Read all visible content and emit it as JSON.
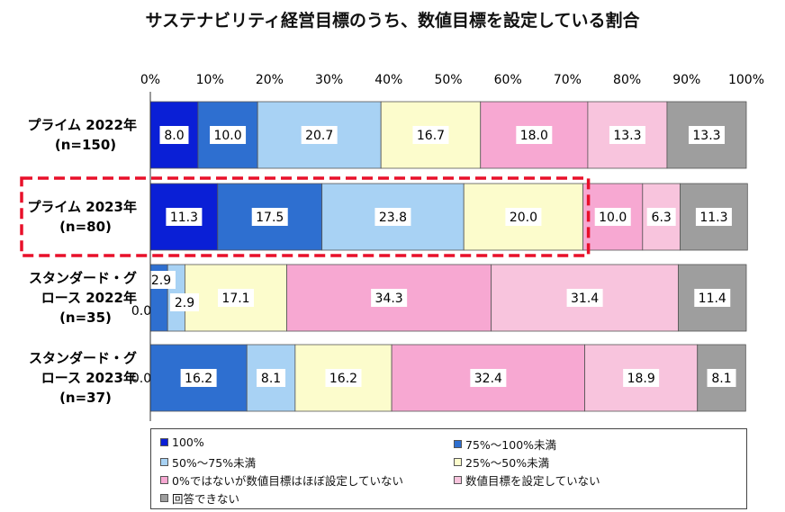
{
  "title": "サステナビリティ経営目標のうち、数値目標を設定している割合",
  "chart_data": {
    "type": "bar",
    "orientation": "horizontal",
    "stacked": true,
    "xlim": [
      0,
      100
    ],
    "x_ticks": [
      "0%",
      "10%",
      "20%",
      "30%",
      "40%",
      "50%",
      "60%",
      "70%",
      "80%",
      "90%",
      "100%"
    ],
    "grid": false,
    "legend_position": "bottom",
    "categories": [
      [
        "プライム 2022年",
        "(n=150)"
      ],
      [
        "プライム 2023年",
        "(n=80)"
      ],
      [
        "スタンダード・グ",
        "ロース 2022年",
        "(n=35)"
      ],
      [
        "スタンダード・グ",
        "ロース 2023年",
        "(n=37)"
      ]
    ],
    "series": [
      {
        "name": "100%",
        "color": "#0a1fd6",
        "values": [
          8.0,
          11.3,
          0.0,
          0.0
        ]
      },
      {
        "name": "75%～100%未満",
        "color": "#2e6fd0",
        "values": [
          10.0,
          17.5,
          2.9,
          16.2
        ]
      },
      {
        "name": "50%～75%未満",
        "color": "#a8d2f4",
        "values": [
          20.7,
          23.8,
          2.9,
          8.1
        ]
      },
      {
        "name": "25%～50%未満",
        "color": "#fcfccc",
        "values": [
          16.7,
          20.0,
          17.1,
          16.2
        ]
      },
      {
        "name": "0%ではないが数値目標はほぼ設定していない",
        "color": "#f7a8d2",
        "values": [
          18.0,
          10.0,
          34.3,
          32.4
        ]
      },
      {
        "name": "数値目標を設定していない",
        "color": "#f8c4dd",
        "values": [
          13.3,
          6.3,
          31.4,
          18.9
        ]
      },
      {
        "name": "回答できない",
        "color": "#9e9e9e",
        "values": [
          13.3,
          11.3,
          11.4,
          8.1
        ]
      }
    ],
    "value_labels": [
      [
        "8.0",
        "10.0",
        "20.7",
        "16.7",
        "18.0",
        "13.3",
        "13.3"
      ],
      [
        "11.3",
        "17.5",
        "23.8",
        "20.0",
        "10.0",
        "6.3",
        "11.3"
      ],
      [
        "0.0",
        "2.9",
        "2.9",
        "17.1",
        "34.3",
        "31.4",
        "11.4"
      ],
      [
        "0.0",
        "16.2",
        "8.1",
        "16.2",
        "32.4",
        "18.9",
        "8.1"
      ]
    ],
    "highlight_category": 1,
    "highlight_series_count": 4,
    "highlight_color": "#e8102a"
  }
}
